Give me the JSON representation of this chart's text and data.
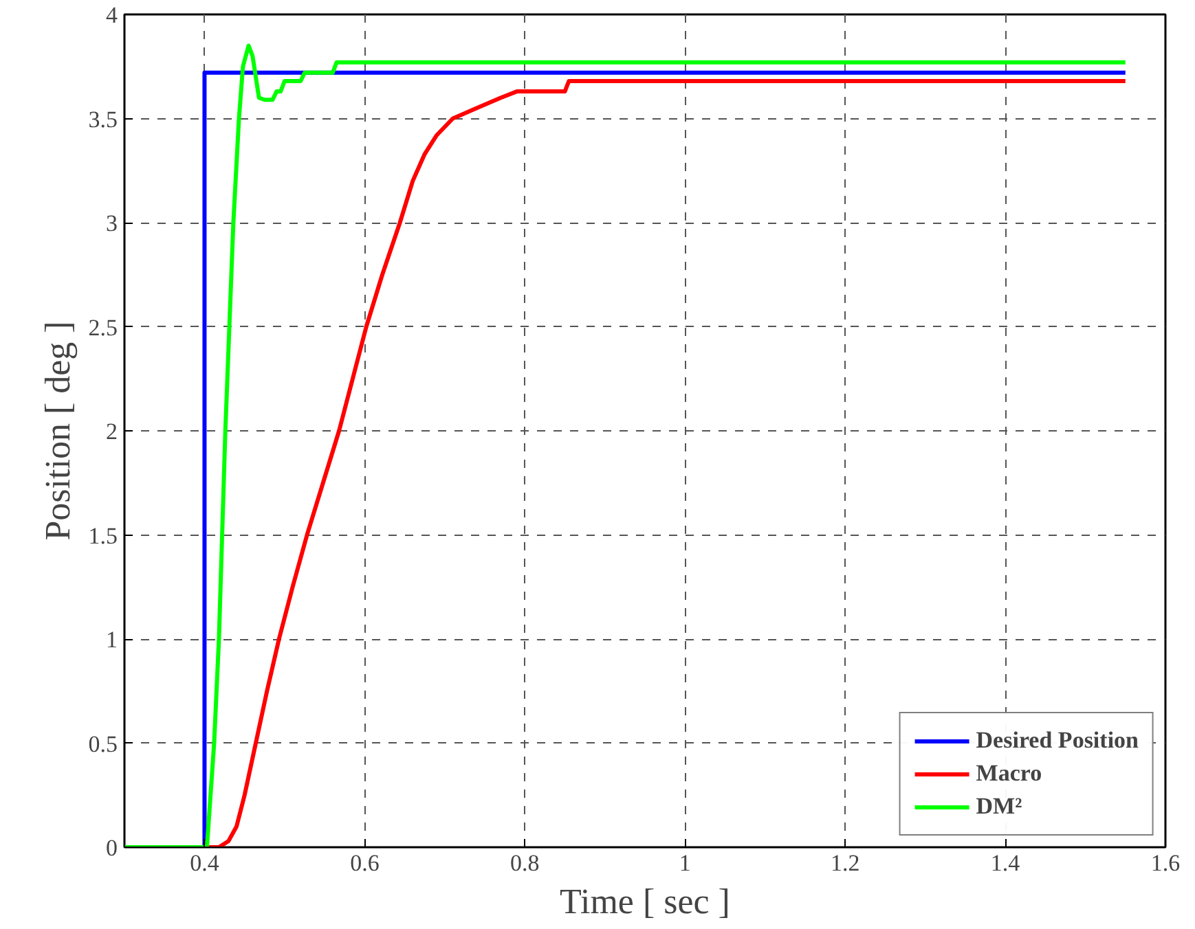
{
  "chart_data": {
    "type": "line",
    "xlabel": "Time [ sec ]",
    "ylabel": "Position [ deg ]",
    "xlim": [
      0.3,
      1.6
    ],
    "ylim": [
      0,
      4
    ],
    "xticks": [
      0.4,
      0.6,
      0.8,
      1,
      1.2,
      1.4,
      1.6
    ],
    "yticks": [
      0,
      0.5,
      1,
      1.5,
      2,
      2.5,
      3,
      3.5,
      4
    ],
    "grid": true,
    "legend": "bottom right",
    "line_style": "solid",
    "marker": "none",
    "series": [
      {
        "name": "Desired Position",
        "color": "#0000ff",
        "x": [
          0.3,
          0.4,
          0.4,
          1.55
        ],
        "values": [
          0,
          0,
          3.72,
          3.72
        ]
      },
      {
        "name": "Macro",
        "color": "#ff0000",
        "x": [
          0.3,
          0.418,
          0.43,
          0.44,
          0.45,
          0.464,
          0.478,
          0.493,
          0.51,
          0.528,
          0.548,
          0.568,
          0.585,
          0.602,
          0.622,
          0.644,
          0.66,
          0.675,
          0.69,
          0.71,
          0.74,
          0.77,
          0.79,
          0.85,
          0.855,
          1.55
        ],
        "values": [
          0,
          0,
          0.03,
          0.1,
          0.25,
          0.5,
          0.75,
          1,
          1.25,
          1.5,
          1.75,
          2,
          2.25,
          2.5,
          2.75,
          3,
          3.2,
          3.33,
          3.42,
          3.5,
          3.55,
          3.6,
          3.63,
          3.63,
          3.68,
          3.68
        ]
      },
      {
        "name": "DM²",
        "color": "#00ff00",
        "x": [
          0.3,
          0.403,
          0.412,
          0.418,
          0.426,
          0.436,
          0.443,
          0.448,
          0.455,
          0.46,
          0.468,
          0.475,
          0.485,
          0.49,
          0.495,
          0.5,
          0.52,
          0.525,
          0.56,
          0.565,
          1.55
        ],
        "values": [
          0,
          0,
          0.5,
          1,
          2,
          3,
          3.5,
          3.75,
          3.85,
          3.8,
          3.6,
          3.59,
          3.59,
          3.63,
          3.63,
          3.68,
          3.68,
          3.72,
          3.72,
          3.77,
          3.77
        ]
      }
    ]
  }
}
